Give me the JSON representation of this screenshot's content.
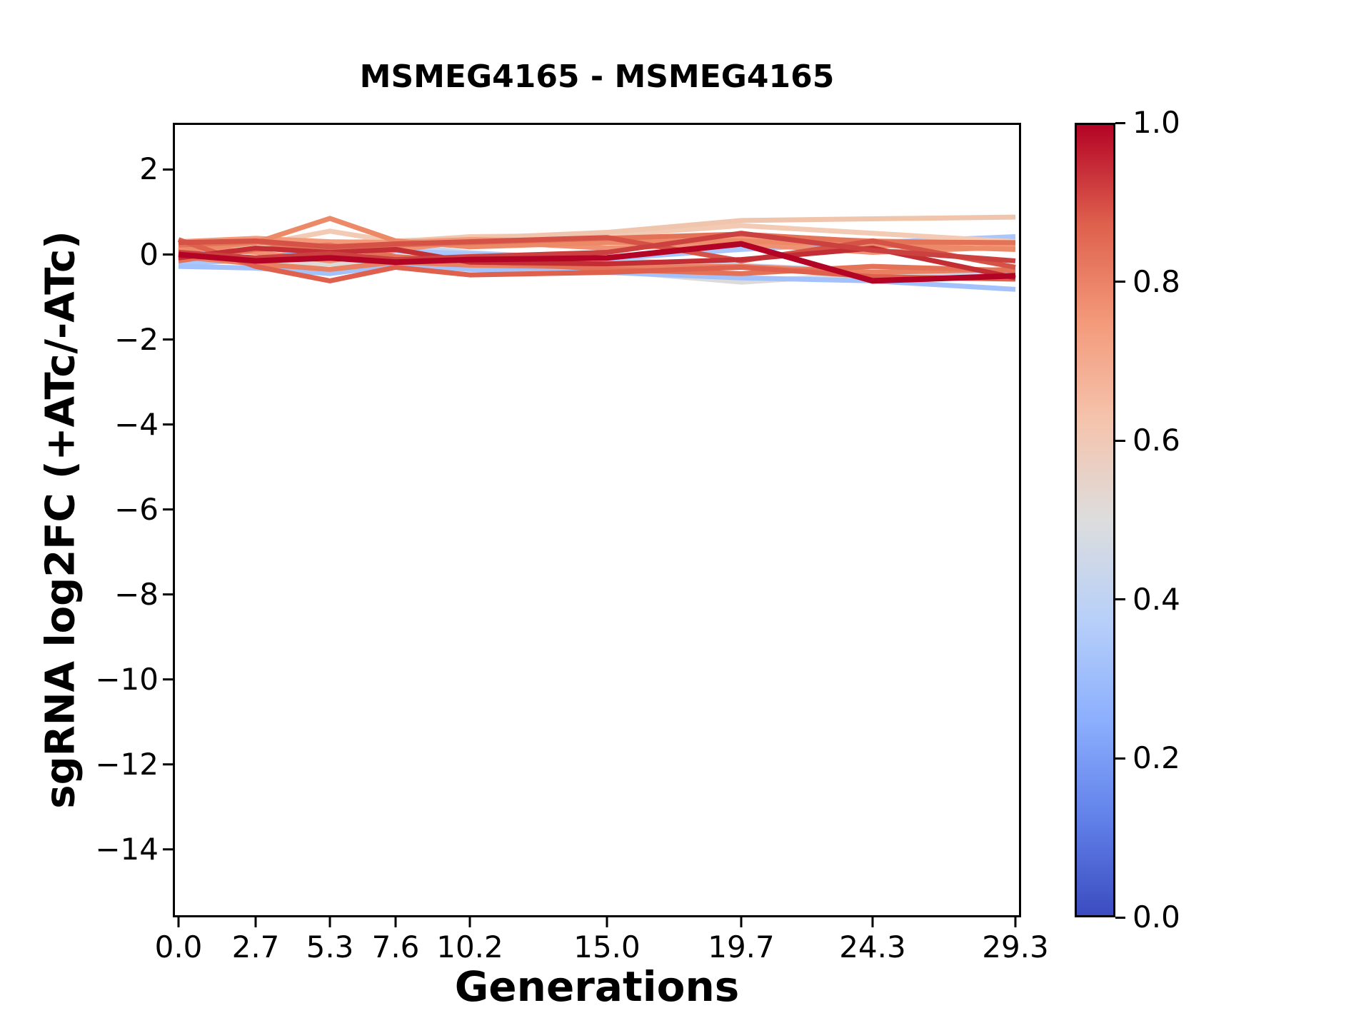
{
  "title": "MSMEG4165 - MSMEG4165",
  "chart_data": {
    "type": "line",
    "title": "MSMEG4165 - MSMEG4165",
    "xlabel": "Generations",
    "ylabel": "sgRNA log2FC (+ATc/-ATc)",
    "grid": false,
    "xlim": [
      -0.2,
      29.5
    ],
    "ylim": [
      -15.6,
      3.1
    ],
    "x": [
      0.0,
      2.7,
      5.3,
      7.6,
      10.2,
      15.0,
      19.7,
      24.3,
      29.3
    ],
    "xtick_labels": [
      "0.0",
      "2.7",
      "5.3",
      "7.6",
      "10.2",
      "15.0",
      "19.7",
      "24.3",
      "29.3"
    ],
    "ytick_values": [
      2,
      0,
      -2,
      -4,
      -6,
      -8,
      -10,
      -12,
      -14
    ],
    "ytick_labels": [
      "2",
      "0",
      "−2",
      "−4",
      "−6",
      "−8",
      "−10",
      "−12",
      "−14"
    ],
    "series": [
      {
        "colorbar_value": 0.5,
        "color": "#dcdbd9",
        "width": 7,
        "values": [
          -0.12,
          -0.18,
          -0.22,
          -0.28,
          -0.32,
          -0.38,
          -0.65,
          -0.45,
          -0.55
        ]
      },
      {
        "colorbar_value": 0.45,
        "color": "#c6d6f1",
        "width": 6,
        "values": [
          0.05,
          0.12,
          0.28,
          0.22,
          0.05,
          -0.12,
          -0.25,
          -0.38,
          -0.48
        ]
      },
      {
        "colorbar_value": 0.4,
        "color": "#aac7fd",
        "width": 7,
        "values": [
          -0.22,
          -0.12,
          0.18,
          0.08,
          0.02,
          -0.1,
          0.12,
          0.28,
          0.42
        ]
      },
      {
        "colorbar_value": 0.38,
        "color": "#a3c2fc",
        "width": 7,
        "values": [
          -0.28,
          -0.32,
          -0.45,
          -0.25,
          -0.35,
          -0.42,
          -0.55,
          -0.62,
          -0.82
        ]
      },
      {
        "colorbar_value": 0.62,
        "color": "#f3cab3",
        "width": 7,
        "values": [
          0.1,
          0.22,
          0.55,
          0.3,
          0.42,
          0.45,
          0.68,
          0.5,
          0.3
        ]
      },
      {
        "colorbar_value": 0.6,
        "color": "#f0c5ad",
        "width": 7,
        "values": [
          0.15,
          0.18,
          0.28,
          0.32,
          0.38,
          0.52,
          0.8,
          0.84,
          0.88
        ]
      },
      {
        "colorbar_value": 0.76,
        "color": "#f09173",
        "width": 7,
        "values": [
          0.18,
          0.05,
          -0.15,
          0.1,
          0.32,
          0.15,
          0.25,
          0.05,
          0.18
        ]
      },
      {
        "colorbar_value": 0.8,
        "color": "#e98061",
        "width": 7,
        "values": [
          -0.05,
          -0.22,
          -0.35,
          -0.18,
          -0.25,
          -0.3,
          -0.28,
          -0.42,
          -0.35
        ]
      },
      {
        "colorbar_value": 0.75,
        "color": "#f49a7b",
        "width": 7,
        "values": [
          0.3,
          0.38,
          0.3,
          0.28,
          0.35,
          0.3,
          0.42,
          0.32,
          0.25
        ]
      },
      {
        "colorbar_value": 0.78,
        "color": "#ec8966",
        "width": 7,
        "values": [
          0.08,
          0.28,
          0.85,
          0.32,
          0.18,
          0.28,
          0.32,
          0.22,
          0.12
        ]
      },
      {
        "colorbar_value": 0.84,
        "color": "#e37257",
        "width": 7,
        "values": [
          -0.15,
          0.12,
          0.22,
          -0.05,
          -0.15,
          -0.35,
          -0.45,
          -0.28,
          -0.38
        ]
      },
      {
        "colorbar_value": 0.84,
        "color": "#e37257",
        "width": 7,
        "values": [
          0.22,
          0.3,
          0.12,
          0.22,
          0.28,
          0.38,
          0.48,
          0.3,
          0.28
        ]
      },
      {
        "colorbar_value": 0.88,
        "color": "#de604d",
        "width": 7,
        "values": [
          0.35,
          -0.28,
          -0.62,
          -0.3,
          -0.48,
          -0.42,
          -0.3,
          -0.52,
          -0.58
        ]
      },
      {
        "colorbar_value": 0.9,
        "color": "#d55247",
        "width": 7,
        "values": [
          0.28,
          0.32,
          0.18,
          0.25,
          0.3,
          0.4,
          -0.15,
          0.32,
          -0.3
        ]
      },
      {
        "colorbar_value": 0.96,
        "color": "#c22e34",
        "width": 7,
        "values": [
          -0.08,
          0.15,
          0.05,
          0.12,
          -0.18,
          -0.22,
          -0.12,
          0.15,
          -0.55
        ]
      },
      {
        "colorbar_value": 0.93,
        "color": "#cb4140",
        "width": 7,
        "values": [
          0.05,
          -0.08,
          0.02,
          -0.12,
          -0.05,
          0.05,
          0.5,
          0.1,
          -0.15
        ]
      },
      {
        "colorbar_value": 1.0,
        "color": "#b40426",
        "width": 8,
        "values": [
          0.0,
          -0.15,
          -0.08,
          -0.18,
          -0.12,
          -0.08,
          0.25,
          -0.62,
          -0.5
        ]
      }
    ],
    "colorbar": {
      "colormap": "coolwarm",
      "min": 0.0,
      "max": 1.0,
      "tick_values": [
        1.0,
        0.8,
        0.6,
        0.4,
        0.2,
        0.0
      ],
      "tick_labels": [
        "1.0",
        "0.8",
        "0.6",
        "0.4",
        "0.2",
        "0.0"
      ],
      "gradient_top_to_bottom": [
        "#b40426",
        "#de604d",
        "#f49a7b",
        "#f5c4ad",
        "#dddddd",
        "#b8d0f9",
        "#8db0fe",
        "#6282ea",
        "#3b4cc0"
      ]
    },
    "axis_color": "#000000",
    "background_color": "#ffffff"
  }
}
